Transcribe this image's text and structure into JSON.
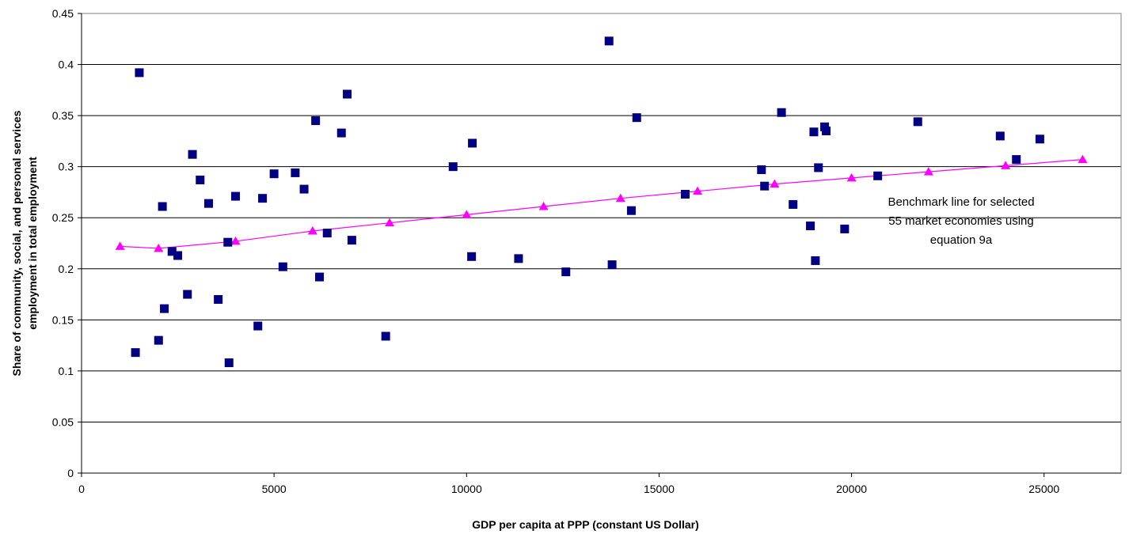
{
  "chart_data": {
    "type": "scatter",
    "xlabel": "GDP per capita at PPP (constant US Dollar)",
    "ylabel_lines": [
      "Share of community, social, and personal services",
      "employment in total employment"
    ],
    "xlim": [
      0,
      27000
    ],
    "ylim": [
      0,
      0.45
    ],
    "x_ticks": [
      0,
      5000,
      10000,
      15000,
      20000,
      25000
    ],
    "x_tick_labels": [
      "0",
      "5000",
      "10000",
      "15000",
      "20000",
      "25000"
    ],
    "y_ticks": [
      0,
      0.05,
      0.1,
      0.15,
      0.2,
      0.25,
      0.3,
      0.35,
      0.4,
      0.45
    ],
    "y_tick_labels": [
      "0",
      "0.05",
      "0.1",
      "0.15",
      "0.2",
      "0.25",
      "0.3",
      "0.35",
      "0.4",
      "0.45"
    ],
    "grid": "horizontal",
    "colors": {
      "scatter": "#000080",
      "benchmark": "#ff00ff"
    },
    "annotation_lines": [
      "Benchmark line for selected",
      "55 market economies using",
      "equation 9a"
    ],
    "scatter": {
      "marker": "square",
      "x": [
        1400,
        1500,
        2000,
        2100,
        2150,
        2350,
        2500,
        2750,
        2880,
        3080,
        3300,
        3550,
        3800,
        3830,
        4000,
        4580,
        4700,
        5000,
        5230,
        5550,
        5780,
        6080,
        6180,
        6380,
        6750,
        6900,
        7020,
        7900,
        9650,
        10130,
        10150,
        11350,
        12580,
        13700,
        13780,
        14280,
        14420,
        15680,
        17660,
        17740,
        18180,
        18480,
        18930,
        19020,
        19060,
        19140,
        19300,
        19340,
        19820,
        20680,
        21720,
        23860,
        24280,
        24890
      ],
      "y": [
        0.118,
        0.392,
        0.13,
        0.261,
        0.161,
        0.217,
        0.213,
        0.175,
        0.312,
        0.287,
        0.264,
        0.17,
        0.226,
        0.108,
        0.271,
        0.144,
        0.269,
        0.293,
        0.202,
        0.294,
        0.278,
        0.345,
        0.192,
        0.235,
        0.333,
        0.371,
        0.228,
        0.134,
        0.3,
        0.212,
        0.323,
        0.21,
        0.197,
        0.423,
        0.204,
        0.257,
        0.348,
        0.273,
        0.297,
        0.281,
        0.353,
        0.263,
        0.242,
        0.334,
        0.208,
        0.299,
        0.339,
        0.335,
        0.239,
        0.291,
        0.344,
        0.33,
        0.307,
        0.327
      ]
    },
    "benchmark": {
      "marker": "triangle",
      "x": [
        1000,
        2000,
        4000,
        6000,
        8000,
        10000,
        12000,
        14000,
        16000,
        18000,
        20000,
        22000,
        24000,
        26000
      ],
      "y": [
        0.222,
        0.22,
        0.227,
        0.237,
        0.245,
        0.253,
        0.261,
        0.269,
        0.276,
        0.283,
        0.289,
        0.295,
        0.301,
        0.307
      ]
    }
  }
}
